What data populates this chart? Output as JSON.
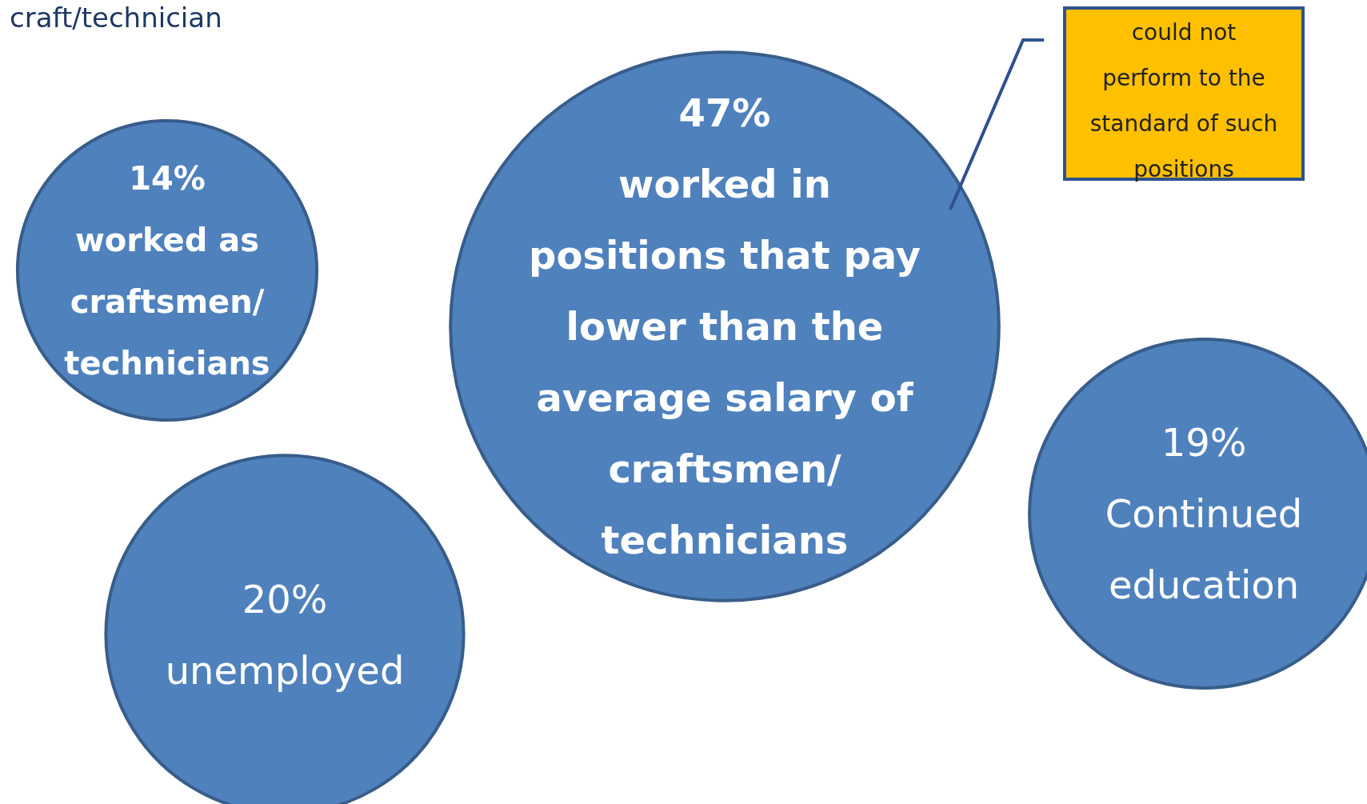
{
  "chart_data": {
    "type": "other",
    "title": "craft/technician",
    "categories": [
      "worked as\ncraftsmen/\ntechnicians",
      "worked in\npositions that pay\nlower than the\naverage salary of\ncraftsmen/\ntechnicians",
      "unemployed",
      "Continued\neducation"
    ],
    "values": [
      14,
      47,
      20,
      19
    ],
    "value_labels": [
      "14%",
      "47%",
      "20%",
      "19%"
    ],
    "color": "#4f81bd",
    "annotations": [
      "could not\nperform to the\nstandard of such\npositions"
    ]
  }
}
